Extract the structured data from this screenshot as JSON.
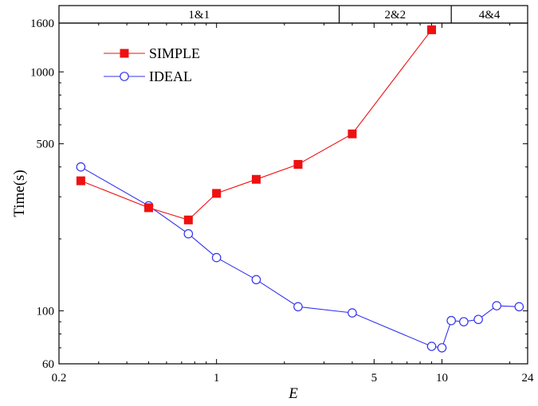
{
  "chart_data": {
    "type": "line",
    "xscale": "log",
    "yscale": "log",
    "xlabel": "E",
    "ylabel": "Time(s)",
    "xlim": [
      0.2,
      24
    ],
    "ylim": [
      60,
      1600
    ],
    "xticks": [
      {
        "value": 0.2,
        "label": "0.2"
      },
      {
        "value": 1,
        "label": "1"
      },
      {
        "value": 5,
        "label": "5"
      },
      {
        "value": 10,
        "label": "10"
      },
      {
        "value": 24,
        "label": "24"
      }
    ],
    "yticks": [
      {
        "value": 60,
        "label": "60"
      },
      {
        "value": 100,
        "label": "100"
      },
      {
        "value": 500,
        "label": "500"
      },
      {
        "value": 1000,
        "label": "1000"
      },
      {
        "value": 1600,
        "label": "1600"
      }
    ],
    "top_bands": [
      {
        "label": "1&1",
        "from": 0.2,
        "to": 3.5
      },
      {
        "label": "2&2",
        "from": 3.5,
        "to": 11
      },
      {
        "label": "4&4",
        "from": 11,
        "to": 24
      }
    ],
    "legend_position": "top-left",
    "series": [
      {
        "name": "SIMPLE",
        "color": "#ee1111",
        "marker": "filled-square",
        "points": [
          {
            "x": 0.25,
            "y": 350
          },
          {
            "x": 0.5,
            "y": 270
          },
          {
            "x": 0.75,
            "y": 240
          },
          {
            "x": 1.0,
            "y": 310
          },
          {
            "x": 1.5,
            "y": 355
          },
          {
            "x": 2.3,
            "y": 410
          },
          {
            "x": 4.0,
            "y": 550
          },
          {
            "x": 9.0,
            "y": 1500
          }
        ]
      },
      {
        "name": "IDEAL",
        "color": "#3333ee",
        "marker": "open-circle",
        "points": [
          {
            "x": 0.25,
            "y": 400
          },
          {
            "x": 0.5,
            "y": 275
          },
          {
            "x": 0.75,
            "y": 210
          },
          {
            "x": 1.0,
            "y": 167
          },
          {
            "x": 1.5,
            "y": 135
          },
          {
            "x": 2.3,
            "y": 104
          },
          {
            "x": 4.0,
            "y": 98
          },
          {
            "x": 9.0,
            "y": 71
          },
          {
            "x": 10.0,
            "y": 70
          },
          {
            "x": 11.0,
            "y": 91
          },
          {
            "x": 12.5,
            "y": 90
          },
          {
            "x": 14.5,
            "y": 92
          },
          {
            "x": 17.5,
            "y": 105
          },
          {
            "x": 22.0,
            "y": 104
          }
        ]
      }
    ]
  }
}
